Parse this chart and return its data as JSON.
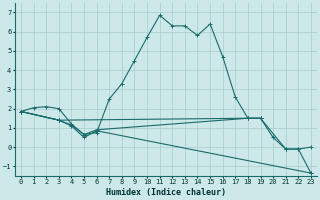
{
  "xlabel": "Humidex (Indice chaleur)",
  "background_color": "#cce8e8",
  "grid_color": "#aacccc",
  "line_color": "#1a6b6b",
  "xlim": [
    -0.5,
    23.5
  ],
  "ylim": [
    -1.5,
    7.5
  ],
  "yticks": [
    -1,
    0,
    1,
    2,
    3,
    4,
    5,
    6,
    7
  ],
  "xticks": [
    0,
    1,
    2,
    3,
    4,
    5,
    6,
    7,
    8,
    9,
    10,
    11,
    12,
    13,
    14,
    15,
    16,
    17,
    18,
    19,
    20,
    21,
    22,
    23
  ],
  "line1_x": [
    0,
    1,
    2,
    3,
    4,
    5,
    6,
    7,
    8,
    9,
    10,
    11,
    12,
    13,
    14,
    15,
    16,
    17,
    18,
    19,
    20,
    21,
    22,
    23
  ],
  "line1_y": [
    1.85,
    2.05,
    2.1,
    2.0,
    1.2,
    0.65,
    0.75,
    2.5,
    3.3,
    4.5,
    5.7,
    6.85,
    6.3,
    6.3,
    5.8,
    6.4,
    4.7,
    2.6,
    1.5,
    1.5,
    0.5,
    -0.1,
    -0.1,
    0.0
  ],
  "line2_x": [
    0,
    3,
    4,
    5,
    6,
    18,
    19
  ],
  "line2_y": [
    1.85,
    1.4,
    1.15,
    0.65,
    0.9,
    1.5,
    1.5
  ],
  "line3_x": [
    0,
    3,
    4,
    5,
    6,
    23
  ],
  "line3_y": [
    1.85,
    1.4,
    1.1,
    0.5,
    0.85,
    -1.35
  ],
  "line4_x": [
    0,
    3,
    18,
    19,
    21,
    22,
    23
  ],
  "line4_y": [
    1.85,
    1.4,
    1.5,
    1.5,
    -0.1,
    -0.1,
    -1.35
  ]
}
